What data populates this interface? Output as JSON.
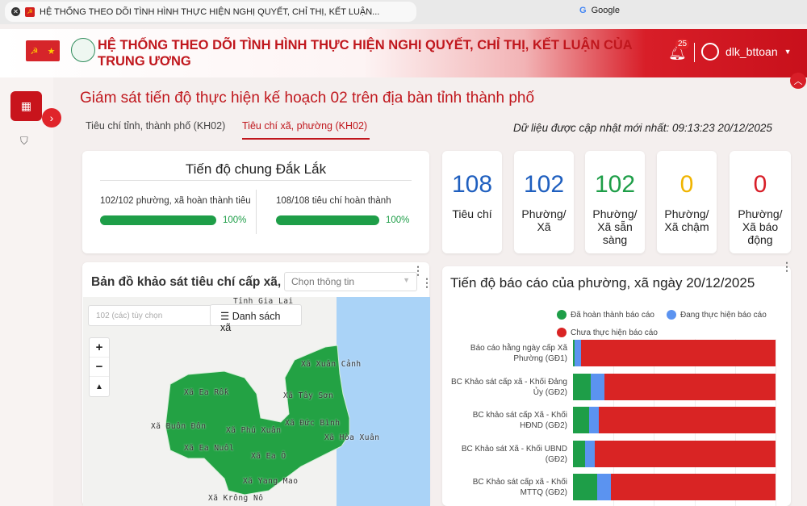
{
  "browser": {
    "tab_title": "HỆ THỐNG THEO DÕI TÌNH HÌNH THỰC HIỆN NGHỊ QUYẾT, CHỈ THỊ, KẾT LUẬN...",
    "other_tab": "Google"
  },
  "header": {
    "title": "HỆ THỐNG THEO DÕI TÌNH HÌNH THỰC HIỆN NGHỊ QUYẾT, CHỈ THỊ, KẾT LUẬN CỦA TRUNG ƯƠNG",
    "notifications": "25",
    "username": "dlk_bttoan"
  },
  "page": {
    "title": "Giám sát tiến độ thực hiện kế hoạch 02 trên địa bàn tỉnh thành phố",
    "tabs": [
      "Tiêu chí tỉnh, thành phố (KH02)",
      "Tiêu chí xã, phường (KH02)"
    ],
    "active_tab": 1,
    "updated": "Dữ liệu được cập nhật mới nhất: 09:13:23 20/12/2025"
  },
  "progress": {
    "title": "Tiến độ chung Đắk Lắk",
    "items": [
      {
        "label": "102/102 phường, xã hoàn thành tiêu chí",
        "percent": "100%",
        "value": 100
      },
      {
        "label": "108/108 tiêu chí hoàn thành",
        "percent": "100%",
        "value": 100
      }
    ]
  },
  "stats": [
    {
      "value": "108",
      "label": "Tiêu chí",
      "color": "#1f5fbf"
    },
    {
      "value": "102",
      "label": "Phường/ Xã",
      "color": "#1f5fbf"
    },
    {
      "value": "102",
      "label": "Phường/ Xã sẵn sàng",
      "color": "#1e9e48"
    },
    {
      "value": "0",
      "label": "Phường/ Xã chậm",
      "color": "#f0b400"
    },
    {
      "value": "0",
      "label": "Phường/ Xã báo động",
      "color": "#d81e28"
    }
  ],
  "map": {
    "title": "Bản đồ khảo sát tiêu chí cấp xã,",
    "select_placeholder": "Chọn thông tin",
    "filter_placeholder": "102 (các) tùy chọn",
    "list_button": "Danh sách xã",
    "zoom_in": "+",
    "zoom_out": "−",
    "labels": [
      "Tỉnh Gia Lai",
      "Xã Xuân Cảnh",
      "Xã Ea Rốk",
      "Xã Tây Sơn",
      "Xã Buôn Đôn",
      "Xã Phú Xuân",
      "Xã Đức Bình",
      "Xã Hòa Xuân",
      "Xã Ea Nuôl",
      "Xã Ea Ô",
      "Xã Yang Mao",
      "Xã Krông Nô"
    ]
  },
  "chart_data": {
    "type": "bar",
    "orientation": "horizontal",
    "stacked": true,
    "title": "Tiến độ báo cáo của phường, xã ngày 20/12/2025",
    "legend_position": "top-right",
    "categories": [
      "Báo cáo hằng ngày cấp Xã Phường (GĐ1)",
      "BC Khảo sát cấp xã - Khối Đảng Ủy (GĐ2)",
      "BC khảo sát cấp Xã - Khối HĐND (GĐ2)",
      "BC Khảo sát Xã - Khối UBND (GĐ2)",
      "BC Khảo sát cấp xã - Khối MTTQ (GĐ2)"
    ],
    "series": [
      {
        "name": "Đã hoàn thành báo cáo",
        "color": "#1e9e48",
        "values": [
          1,
          9,
          8,
          6,
          12
        ]
      },
      {
        "name": "Đang thực hiện báo cáo",
        "color": "#5b93f0",
        "values": [
          3,
          7,
          5,
          5,
          7
        ]
      },
      {
        "name": "Chưa thực hiện báo cáo",
        "color": "#d92424",
        "values": [
          98,
          86,
          89,
          91,
          83
        ]
      }
    ]
  }
}
